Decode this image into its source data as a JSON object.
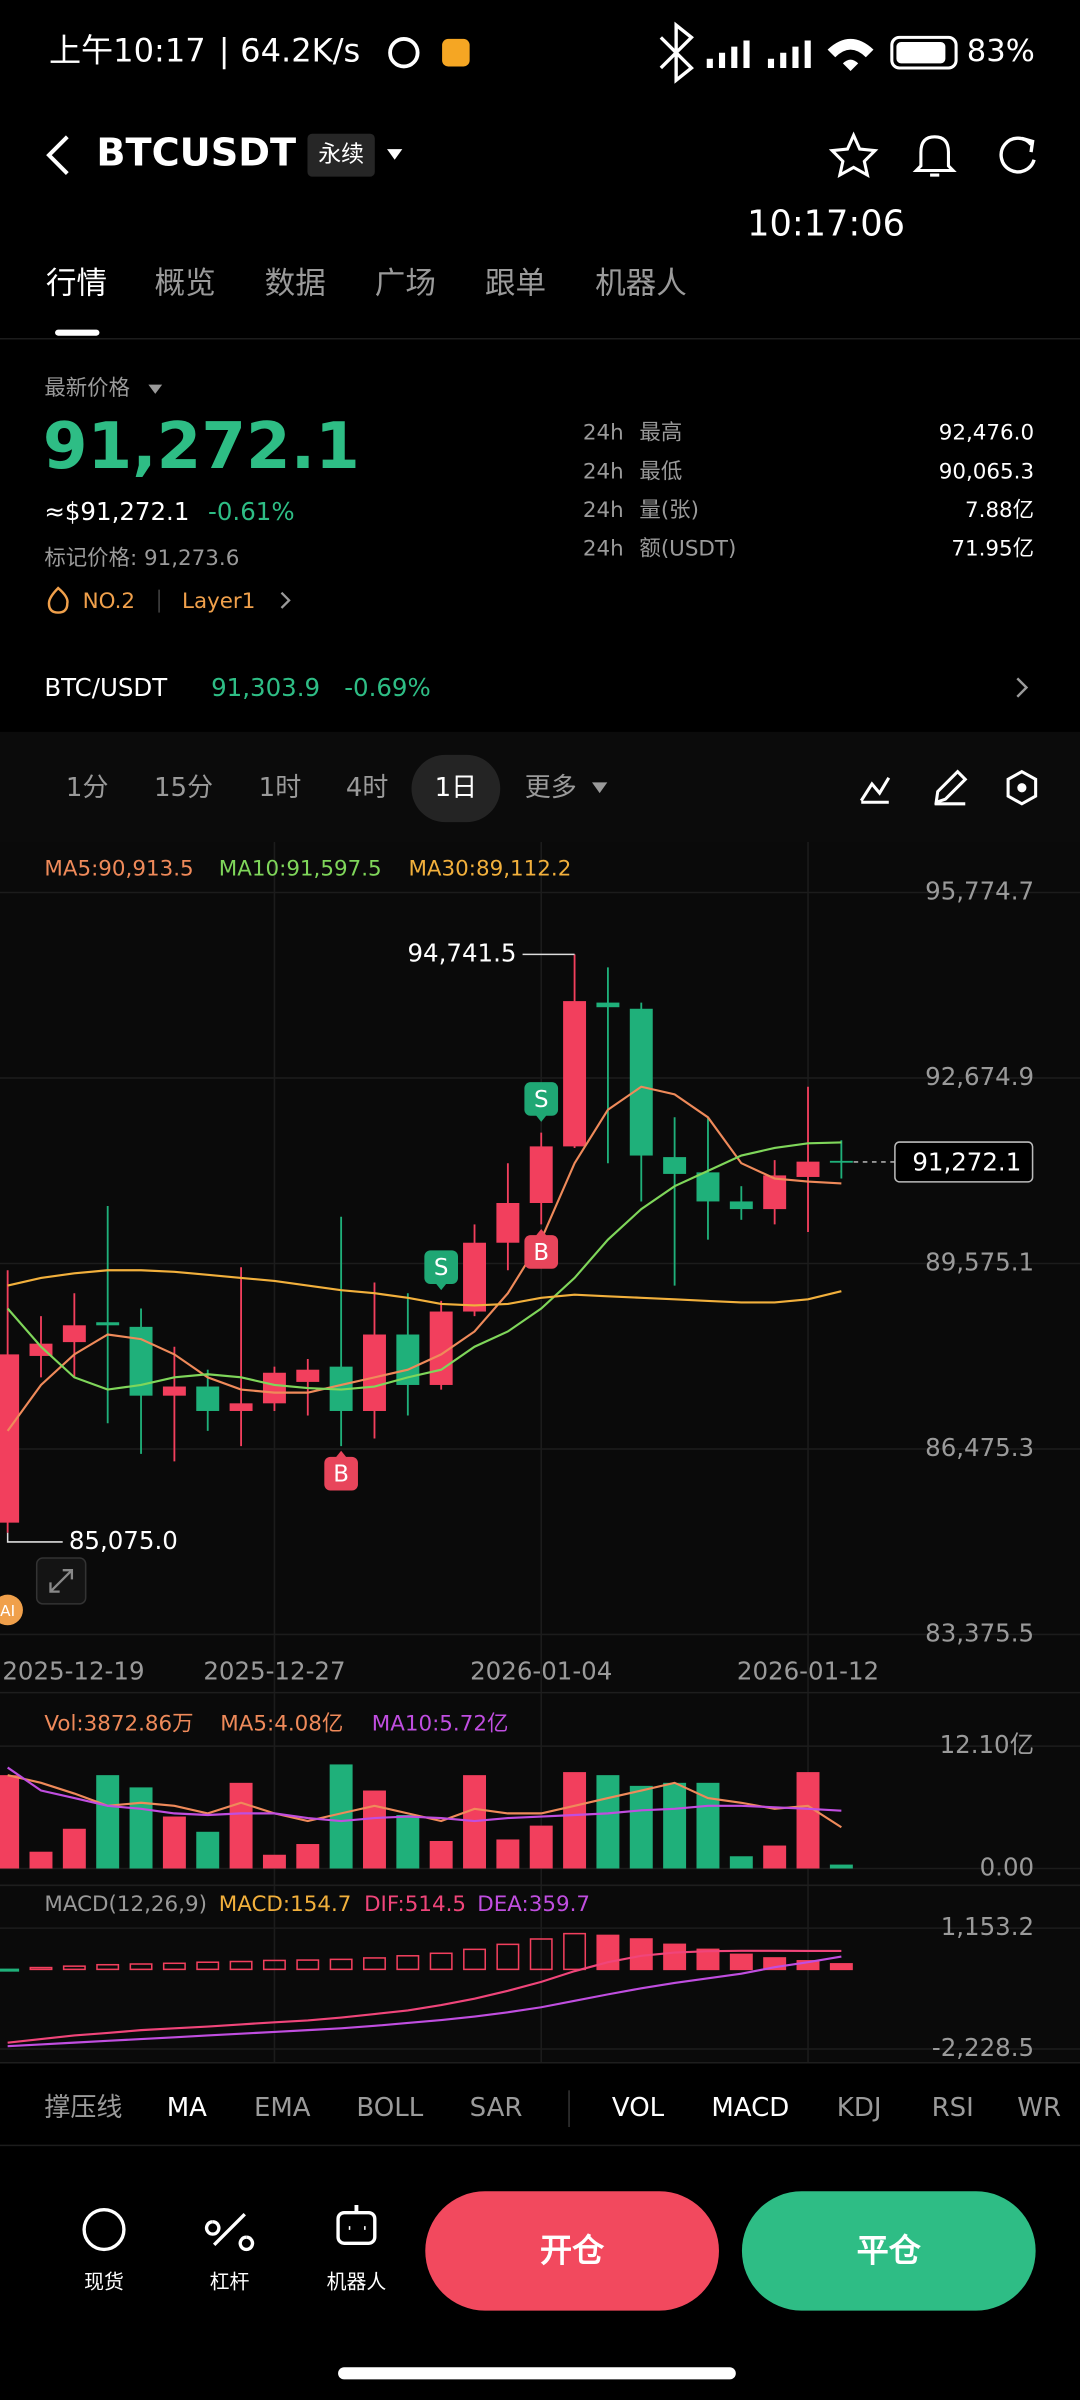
{
  "status_bar": {
    "time": "上午10:17",
    "separator": "|",
    "speed": "64.2K/s",
    "battery": "83%"
  },
  "header": {
    "symbol": "BTCUSDT",
    "tag": "永续",
    "clock": "10:17:06"
  },
  "tabs": [
    "行情",
    "概览",
    "数据",
    "广场",
    "跟单",
    "机器人"
  ],
  "price": {
    "label": "最新价格",
    "last": "91,272.1",
    "usd": "≈$91,272.1",
    "change": "-0.61%",
    "mark_label": "标记价格: 91,273.6",
    "rank": "NO.2",
    "sector": "Layer1"
  },
  "stats": [
    {
      "period": "24h",
      "label": "最高",
      "value": "92,476.0"
    },
    {
      "period": "24h",
      "label": "最低",
      "value": "90,065.3"
    },
    {
      "period": "24h",
      "label": "量(张)",
      "value": "7.88亿"
    },
    {
      "period": "24h",
      "label": "额(USDT)",
      "value": "71.95亿"
    }
  ],
  "spot": {
    "pair": "BTC/USDT",
    "price": "91,303.9",
    "change": "-0.69%"
  },
  "intervals": {
    "items": [
      "1分",
      "15分",
      "1时",
      "4时",
      "1日",
      "更多"
    ],
    "selected": 4
  },
  "chart_data": {
    "type": "candlestick",
    "up_color": "#f23f5d",
    "down_color": "#1fb07a",
    "grid": true,
    "categories": [
      "2025-12-19",
      null,
      null,
      null,
      null,
      null,
      null,
      null,
      "2025-12-27",
      null,
      null,
      null,
      null,
      null,
      null,
      null,
      "2026-01-04",
      null,
      null,
      null,
      null,
      null,
      null,
      null,
      "2026-01-12",
      null
    ],
    "open": [
      85244,
      88030,
      88261,
      88593,
      88516,
      87366,
      87519,
      87110,
      87238,
      87596,
      87851,
      87110,
      88388,
      87545,
      88772,
      89922,
      90586,
      91532,
      93935,
      93832,
      91353,
      91098,
      90612,
      90484,
      91021,
      91290
    ],
    "high": [
      89462,
      88695,
      89078,
      90535,
      88823,
      88184,
      87800,
      89513,
      87851,
      87979,
      90356,
      89257,
      89078,
      88951,
      90228,
      91251,
      91762,
      94741.5,
      94523,
      93935,
      92018,
      92018,
      90867,
      91302,
      92529,
      91634
    ],
    "low": [
      85075,
      87672,
      87672,
      86906,
      86394,
      86267,
      86778,
      86522,
      87110,
      87034,
      86522,
      86650,
      87034,
      87468,
      88695,
      89462,
      90228,
      91506,
      91251,
      90612,
      89206,
      89973,
      90305,
      90228,
      90101,
      90995
    ],
    "close": [
      88056,
      88235,
      88542,
      88542,
      87366,
      87519,
      87110,
      87238,
      87749,
      87800,
      87110,
      88388,
      87545,
      88772,
      89922,
      90586,
      91532,
      93960,
      93858,
      91379,
      91072,
      90612,
      90484,
      91047,
      91277,
      91272.1
    ],
    "series": [
      {
        "name": "MA5:90,913.5",
        "color": "#ef8a5a",
        "values": [
          86778,
          87545,
          88056,
          88388,
          88311,
          88056,
          87672,
          87468,
          87417,
          87417,
          87545,
          87672,
          87800,
          88056,
          88439,
          89078,
          89973,
          91251,
          92145,
          92529,
          92401,
          92018,
          91251,
          90995,
          90944,
          90913.5
        ]
      },
      {
        "name": "MA10:91,597.5",
        "color": "#7fd65a",
        "values": [
          88823,
          88184,
          87672,
          87468,
          87545,
          87672,
          87724,
          87672,
          87545,
          87494,
          87468,
          87519,
          87672,
          87800,
          88184,
          88439,
          88823,
          89334,
          89973,
          90484,
          90867,
          91123,
          91379,
          91506,
          91583,
          91597.5
        ]
      },
      {
        "name": "MA30:89,112.2",
        "color": "#f2b03c",
        "values": [
          89206,
          89334,
          89411,
          89462,
          89462,
          89436,
          89385,
          89334,
          89283,
          89206,
          89129,
          89078,
          89002,
          88899,
          88874,
          88899,
          89002,
          89053,
          89027,
          89002,
          88976,
          88950,
          88925,
          88925,
          88976,
          89112.2
        ]
      }
    ],
    "ylim": [
      83375.5,
      95774.7
    ],
    "yticks": [
      {
        "value": 95774.7,
        "label": "95,774.7"
      },
      {
        "value": 92674.9,
        "label": "92,674.9"
      },
      {
        "value": 89575.1,
        "label": "89,575.1"
      },
      {
        "value": 86475.3,
        "label": "86,475.3"
      },
      {
        "value": 83375.5,
        "label": "83,375.5"
      }
    ],
    "last_price": {
      "value": 91272.1,
      "label": "91,272.1"
    },
    "high_label": {
      "value": 94741.5,
      "label": "94,741.5",
      "index": 17
    },
    "low_label": {
      "value": 85075,
      "label": "85,075.0",
      "index": 0
    },
    "trades": [
      {
        "label": "S",
        "index": 13
      },
      {
        "label": "S",
        "index": 16
      },
      {
        "label": "B",
        "index": 16
      },
      {
        "label": "B",
        "index": 10
      }
    ],
    "ai_badge": "AI",
    "volume": {
      "legend": [
        "Vol:3872.86万",
        "MA5:4.08亿",
        "MA10:5.72亿"
      ],
      "legend_colors": [
        "#ef8a5a",
        "#ef8a5a",
        "#c04ee0"
      ],
      "values": [
        9.23,
        1.66,
        3.93,
        9.23,
        8.02,
        5.14,
        3.63,
        8.47,
        1.36,
        2.42,
        10.29,
        7.71,
        5.29,
        2.72,
        9.23,
        2.87,
        4.24,
        9.53,
        9.23,
        8.17,
        8.47,
        8.47,
        1.21,
        2.27,
        9.53,
        0.3873
      ],
      "series": [
        {
          "name": "MA5",
          "color": "#ef8a5a",
          "values": [
            9.23,
            8.47,
            7.41,
            6.2,
            6.5,
            6.2,
            5.45,
            6.5,
            5.45,
            4.69,
            5.45,
            6.2,
            5.45,
            4.69,
            5.9,
            5.45,
            5.45,
            6.2,
            6.96,
            7.71,
            8.47,
            6.96,
            6.5,
            5.9,
            6.2,
            4.08
          ]
        },
        {
          "name": "MA10",
          "color": "#c04ee0",
          "values": [
            9.98,
            7.71,
            6.96,
            6.2,
            5.9,
            5.45,
            5.29,
            5.45,
            5.45,
            4.99,
            4.69,
            4.99,
            5.14,
            4.99,
            4.69,
            4.99,
            5.14,
            5.29,
            5.45,
            5.75,
            5.9,
            6.2,
            6.2,
            6.05,
            5.9,
            5.72
          ]
        }
      ],
      "ylim": [
        0,
        12.1
      ],
      "yticks": [
        {
          "value": 12.1,
          "label": "12.10亿"
        },
        {
          "value": 0,
          "label": "0.00"
        }
      ]
    },
    "macd": {
      "legend": [
        "MACD(12,26,9)",
        "MACD:154.7",
        "DIF:514.5",
        "DEA:359.7"
      ],
      "legend_colors": [
        "#999999",
        "#f2b03c",
        "#f0457a",
        "#c04ee0"
      ],
      "hist": [
        -20,
        50,
        90,
        130,
        150,
        170,
        200,
        220,
        250,
        260,
        280,
        320,
        380,
        450,
        560,
        700,
        850,
        1000,
        950,
        850,
        700,
        560,
        420,
        320,
        240,
        154.7
      ],
      "series": [
        {
          "name": "DIF",
          "color": "#f0457a",
          "values": [
            -2050,
            -1950,
            -1850,
            -1780,
            -1700,
            -1650,
            -1600,
            -1540,
            -1480,
            -1430,
            -1350,
            -1250,
            -1150,
            -1000,
            -820,
            -600,
            -350,
            -50,
            200,
            380,
            470,
            510,
            520,
            520,
            515,
            514.5
          ]
        },
        {
          "name": "DEA",
          "color": "#c04ee0",
          "values": [
            -2150,
            -2100,
            -2050,
            -2000,
            -1950,
            -1900,
            -1850,
            -1800,
            -1750,
            -1700,
            -1650,
            -1580,
            -1500,
            -1420,
            -1320,
            -1200,
            -1060,
            -880,
            -700,
            -530,
            -380,
            -250,
            -120,
            60,
            200,
            359.7
          ]
        }
      ],
      "ylim": [
        -2228.5,
        1153.2
      ],
      "yticks": [
        {
          "value": 1153.2,
          "label": "1,153.2"
        },
        {
          "value": -2228.5,
          "label": "-2,228.5"
        }
      ]
    }
  },
  "indicators": {
    "items": [
      "撑压线",
      "MA",
      "EMA",
      "BOLL",
      "SAR",
      "VOL",
      "MACD",
      "KDJ",
      "RSI",
      "WR"
    ],
    "active": [
      1,
      5,
      6
    ]
  },
  "bottom_nav": [
    "现货",
    "杠杆",
    "机器人"
  ],
  "actions": {
    "open": "开仓",
    "close": "平仓"
  }
}
